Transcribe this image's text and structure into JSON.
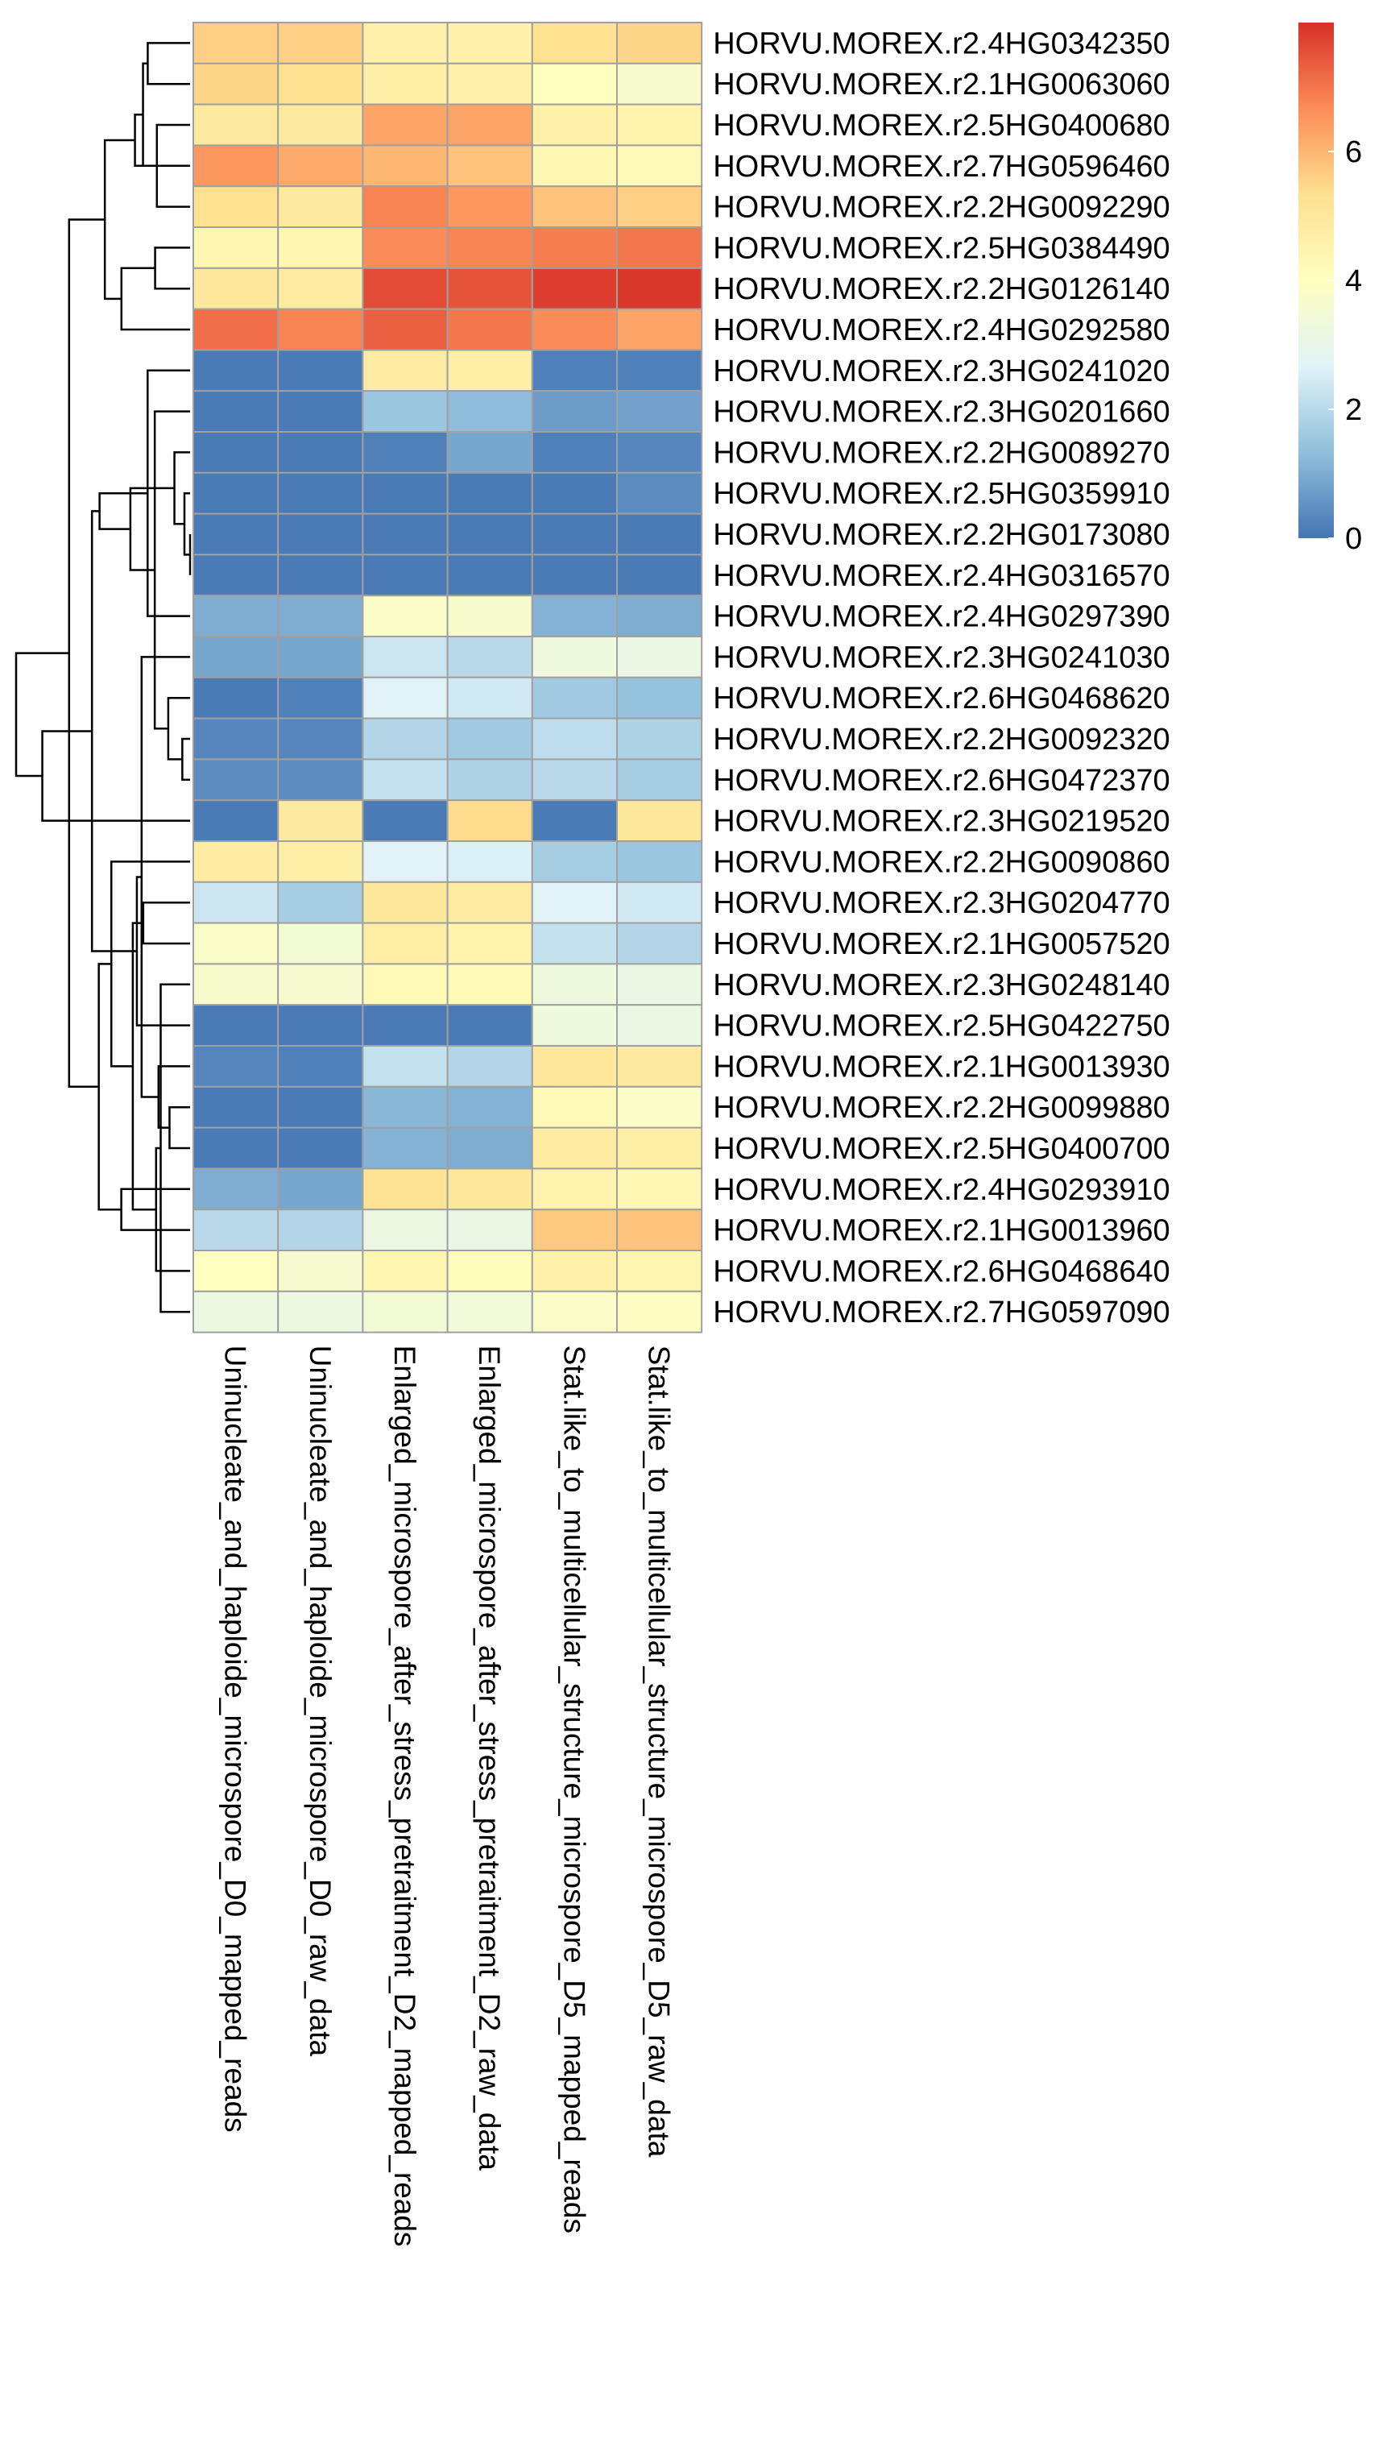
{
  "chart_data": {
    "type": "heatmap",
    "title": "",
    "columns": [
      "Uninucleate_and_haploide_microspore_D0_mapped_reads",
      "Uninucleate_and_haploide_microspore_D0_raw_data",
      "Enlarged_microspore_after_stress_pretraitment_D2_mapped_reads",
      "Enlarged_microspore_after_stress_pretraitment_D2_raw_data",
      "Stat.like_to_multicellular_structure_microspore_D5_mapped_reads",
      "Stat.like_to_multicellular_structure_microspore_D5_raw_data"
    ],
    "rows": [
      "HORVU.MOREX.r2.4HG0342350",
      "HORVU.MOREX.r2.1HG0063060",
      "HORVU.MOREX.r2.5HG0400680",
      "HORVU.MOREX.r2.7HG0596460",
      "HORVU.MOREX.r2.2HG0092290",
      "HORVU.MOREX.r2.5HG0384490",
      "HORVU.MOREX.r2.2HG0126140",
      "HORVU.MOREX.r2.4HG0292580",
      "HORVU.MOREX.r2.3HG0241020",
      "HORVU.MOREX.r2.3HG0201660",
      "HORVU.MOREX.r2.2HG0089270",
      "HORVU.MOREX.r2.5HG0359910",
      "HORVU.MOREX.r2.2HG0173080",
      "HORVU.MOREX.r2.4HG0316570",
      "HORVU.MOREX.r2.4HG0297390",
      "HORVU.MOREX.r2.3HG0241030",
      "HORVU.MOREX.r2.6HG0468620",
      "HORVU.MOREX.r2.2HG0092320",
      "HORVU.MOREX.r2.6HG0472370",
      "HORVU.MOREX.r2.3HG0219520",
      "HORVU.MOREX.r2.2HG0090860",
      "HORVU.MOREX.r2.3HG0204770",
      "HORVU.MOREX.r2.1HG0057520",
      "HORVU.MOREX.r2.3HG0248140",
      "HORVU.MOREX.r2.5HG0422750",
      "HORVU.MOREX.r2.1HG0013930",
      "HORVU.MOREX.r2.2HG0099880",
      "HORVU.MOREX.r2.5HG0400700",
      "HORVU.MOREX.r2.4HG0293910",
      "HORVU.MOREX.r2.1HG0013960",
      "HORVU.MOREX.r2.6HG0468640",
      "HORVU.MOREX.r2.7HG0597090"
    ],
    "values": [
      [
        5.6,
        5.6,
        4.6,
        4.6,
        5.3,
        5.5
      ],
      [
        5.5,
        5.3,
        4.7,
        4.6,
        4.0,
        3.7
      ],
      [
        4.9,
        4.9,
        6.3,
        6.3,
        4.6,
        4.5
      ],
      [
        6.5,
        6.2,
        6.0,
        5.8,
        4.3,
        4.2
      ],
      [
        5.3,
        4.9,
        6.8,
        6.5,
        5.8,
        5.6
      ],
      [
        4.4,
        4.4,
        6.7,
        6.8,
        6.9,
        7.0
      ],
      [
        5.0,
        4.8,
        7.6,
        7.5,
        7.8,
        7.9
      ],
      [
        7.1,
        6.8,
        7.3,
        7.0,
        6.7,
        6.3
      ],
      [
        0.1,
        0.1,
        4.8,
        4.7,
        0.2,
        0.2
      ],
      [
        0.1,
        0.1,
        1.5,
        1.3,
        0.7,
        0.8
      ],
      [
        0.1,
        0.1,
        0.2,
        0.9,
        0.2,
        0.3
      ],
      [
        0.1,
        0.1,
        0.1,
        0.1,
        0.1,
        0.4
      ],
      [
        0.1,
        0.1,
        0.1,
        0.1,
        0.1,
        0.1
      ],
      [
        0.1,
        0.1,
        0.1,
        0.1,
        0.1,
        0.1
      ],
      [
        1.0,
        1.0,
        3.8,
        3.7,
        1.1,
        1.0
      ],
      [
        0.9,
        0.9,
        2.3,
        2.0,
        3.3,
        3.1
      ],
      [
        0.1,
        0.2,
        2.7,
        2.4,
        1.6,
        1.4
      ],
      [
        0.3,
        0.3,
        1.9,
        1.6,
        2.1,
        1.8
      ],
      [
        0.4,
        0.4,
        2.2,
        1.8,
        2.0,
        1.7
      ],
      [
        0.1,
        4.9,
        0.1,
        5.4,
        0.1,
        5.0
      ],
      [
        4.8,
        4.7,
        2.7,
        2.6,
        1.7,
        1.5
      ],
      [
        2.3,
        1.7,
        5.0,
        4.8,
        2.7,
        2.4
      ],
      [
        3.8,
        3.5,
        4.7,
        4.5,
        2.2,
        1.9
      ],
      [
        3.7,
        3.6,
        4.2,
        4.2,
        3.3,
        3.1
      ],
      [
        0.1,
        0.1,
        0.1,
        0.1,
        3.3,
        3.1
      ],
      [
        0.3,
        0.2,
        2.2,
        1.9,
        5.0,
        4.9
      ],
      [
        0.1,
        0.1,
        1.2,
        1.1,
        4.2,
        3.8
      ],
      [
        0.1,
        0.1,
        1.1,
        1.0,
        4.8,
        4.7
      ],
      [
        1.0,
        0.9,
        5.2,
        5.0,
        4.5,
        4.3
      ],
      [
        2.0,
        1.9,
        3.2,
        3.1,
        5.7,
        5.8
      ],
      [
        4.0,
        3.6,
        4.4,
        4.1,
        4.6,
        4.4
      ],
      [
        3.2,
        3.2,
        3.5,
        3.4,
        3.8,
        3.9
      ]
    ],
    "value_range": [
      0,
      8
    ],
    "colorbar": {
      "ticks": [
        0,
        2,
        4,
        6
      ],
      "palette": [
        "#4575B4",
        "#91BFDB",
        "#E0F3F8",
        "#FFFFBF",
        "#FEE090",
        "#FC8D59",
        "#D73027"
      ]
    },
    "row_dendrogram": "left",
    "col_dendrogram": "none",
    "grid": true,
    "legend": "top-right",
    "cell_border_color": "#A0A0A0"
  }
}
